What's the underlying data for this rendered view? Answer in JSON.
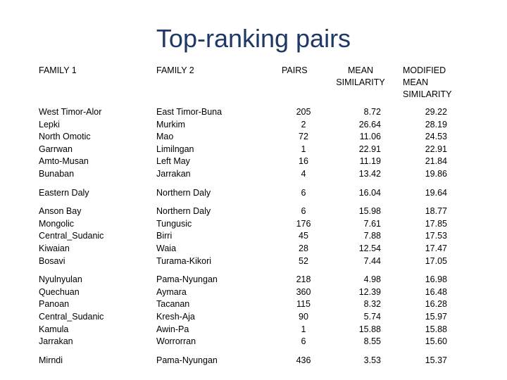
{
  "title": "Top-ranking pairs",
  "table": {
    "header": [
      "FAMILY 1",
      "FAMILY 2",
      "PAIRS",
      "MEAN SIMILARITY",
      "MODIFIED MEAN SIMILARITY"
    ],
    "groups": [
      {
        "rows": [
          [
            "West Timor-Alor",
            "East Timor-Buna",
            "205",
            "8.72",
            "29.22"
          ],
          [
            "Lepki",
            "Murkim",
            "2",
            "26.64",
            "28.19"
          ],
          [
            "North Omotic",
            "Mao",
            "72",
            "11.06",
            "24.53"
          ],
          [
            "Garrwan",
            "Limilngan",
            "1",
            "22.91",
            "22.91"
          ],
          [
            "Amto-Musan",
            "Left May",
            "16",
            "11.19",
            "21.84"
          ],
          [
            "Bunaban",
            "Jarrakan",
            "4",
            "13.42",
            "19.86"
          ]
        ]
      },
      {
        "rows": [
          [
            "Eastern Daly",
            "Northern Daly",
            "6",
            "16.04",
            "19.64"
          ]
        ]
      },
      {
        "rows": [
          [
            "Anson Bay",
            "Northern Daly",
            "6",
            "15.98",
            "18.77"
          ],
          [
            "Mongolic",
            "Tungusic",
            "176",
            "7.61",
            "17.85"
          ],
          [
            "Central_Sudanic",
            "Birri",
            "45",
            "7.88",
            "17.53"
          ],
          [
            "Kiwaian",
            "Waia",
            "28",
            "12.54",
            "17.47"
          ],
          [
            "Bosavi",
            "Turama-Kikori",
            "52",
            "7.44",
            "17.05"
          ]
        ]
      },
      {
        "rows": [
          [
            "Nyulnyulan",
            "Pama-Nyungan",
            "218",
            "4.98",
            "16.98"
          ],
          [
            "Quechuan",
            "Aymara",
            "360",
            "12.39",
            "16.48"
          ],
          [
            "Panoan",
            "Tacanan",
            "115",
            "8.32",
            "16.28"
          ],
          [
            "Central_Sudanic",
            "Kresh-Aja",
            "90",
            "5.74",
            "15.97"
          ],
          [
            "Kamula",
            "Awin-Pa",
            "1",
            "15.88",
            "15.88"
          ],
          [
            "Jarrakan",
            "Worrorran",
            "6",
            "8.55",
            "15.60"
          ]
        ]
      },
      {
        "rows": [
          [
            "Mirndi",
            "Pama-Nyungan",
            "436",
            "3.53",
            "15.37"
          ]
        ]
      }
    ]
  }
}
